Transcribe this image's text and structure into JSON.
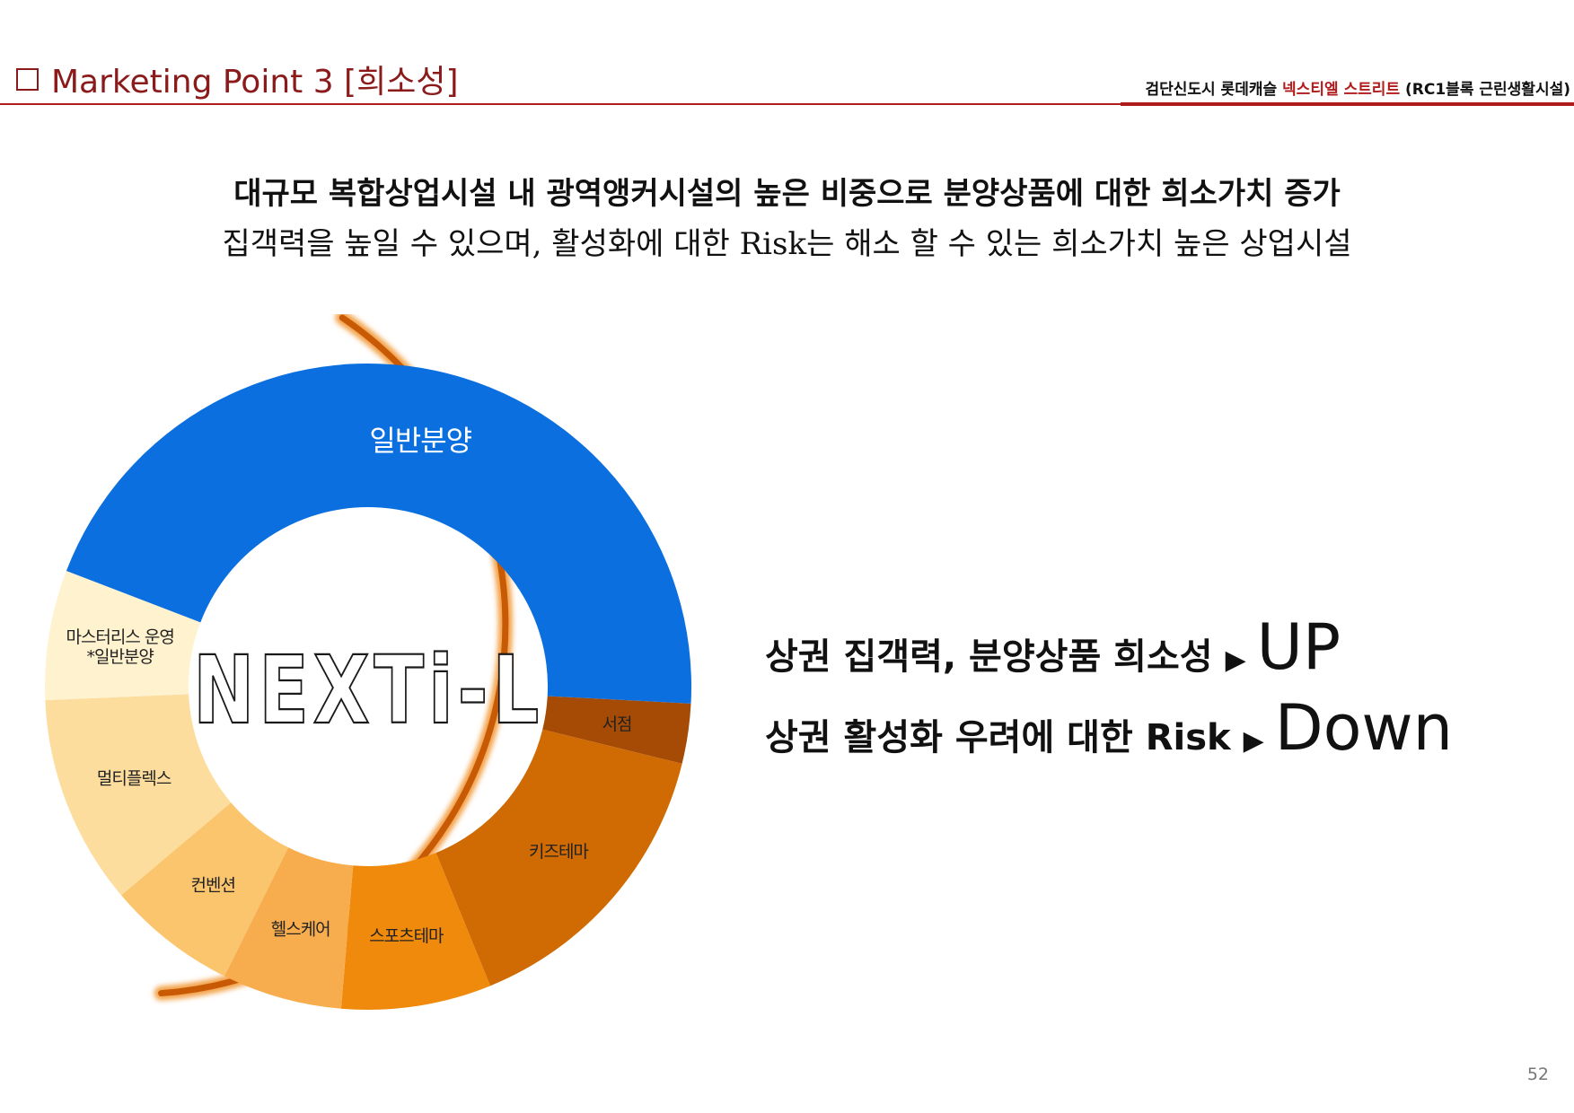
{
  "header": {
    "title": "Marketing Point 3 [희소성]",
    "project_prefix": "검단신도시 롯데캐슬",
    "project_highlight": "넥스티엘 스트리트",
    "project_suffix": "(RC1블록 근린생활시설)"
  },
  "headline": {
    "line1": "대규모 복합상업시설 내 광역앵커시설의 높은 비중으로 분양상품에 대한 희소가치 증가",
    "line2": "집객력을 높일 수 있으며, 활성화에 대한 Risk는 해소 할 수 있는 희소가치 높은 상업시설"
  },
  "chart_data": {
    "type": "pie",
    "variant": "donut",
    "center_logo": "NEXTi-L",
    "slices": [
      {
        "label": "서점",
        "value": 3
      },
      {
        "label": "키즈테마",
        "value": 15
      },
      {
        "label": "스포츠테마",
        "value": 7.5
      },
      {
        "label": "헬스케어",
        "value": 6
      },
      {
        "label": "컨벤션",
        "value": 6.5
      },
      {
        "label": "멀티플렉스",
        "value": 10.5
      },
      {
        "label": "마스터리스 운영\n*일반분양",
        "value": 6.5
      },
      {
        "label": "일반분양",
        "value": 45
      }
    ],
    "colors": [
      "#a64b05",
      "#d06a03",
      "#f08a0c",
      "#f7ad4d",
      "#fbc56e",
      "#fddd9d",
      "#fff2cf",
      "#0b6fdf"
    ]
  },
  "messages": [
    {
      "text": "상권 집객력, 분양상품 희소성",
      "arrow": "▶",
      "big": "UP"
    },
    {
      "text": "상권 활성화 우려에 대한 Risk",
      "arrow": "▶",
      "big": "Down"
    }
  ],
  "page_number": "52"
}
